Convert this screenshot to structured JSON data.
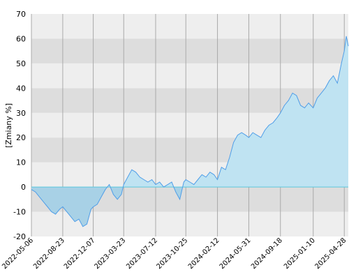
{
  "chart_data": {
    "type": "area",
    "title": "",
    "xlabel": "",
    "ylabel": "[Zmiany %]",
    "ylim": [
      -20,
      70
    ],
    "y_ticks": [
      -20,
      -10,
      0,
      10,
      20,
      30,
      40,
      50,
      60,
      70
    ],
    "x_tick_labels": [
      "2022-05-06",
      "2022-08-23",
      "2022-12-07",
      "2023-03-23",
      "2023-07-12",
      "2023-10-25",
      "2024-02-12",
      "2024-05-31",
      "2024-09-18",
      "2025-01-10",
      "2025-04-28"
    ],
    "x_range": [
      "2022-05-06",
      "2025-05-12"
    ],
    "grid": true,
    "band_colors": [
      "#eeeeee",
      "#dddddd"
    ],
    "colors": {
      "line": "#4f9ee8",
      "positive_fill": "#bfe3f2",
      "negative_fill": "#a8d1e6",
      "zero_line": "#5bc8dc"
    },
    "series": [
      {
        "x": [
          "2022-05-06",
          "2022-05-20",
          "2022-06-03",
          "2022-06-17",
          "2022-07-01",
          "2022-07-15",
          "2022-07-29",
          "2022-08-12",
          "2022-08-23",
          "2022-09-06",
          "2022-09-20",
          "2022-10-04",
          "2022-10-18",
          "2022-11-01",
          "2022-11-15",
          "2022-11-29",
          "2022-12-07",
          "2022-12-21",
          "2023-01-04",
          "2023-01-18",
          "2023-02-01",
          "2023-02-15",
          "2023-03-01",
          "2023-03-15",
          "2023-03-23",
          "2023-04-06",
          "2023-04-20",
          "2023-05-04",
          "2023-05-18",
          "2023-06-01",
          "2023-06-15",
          "2023-06-29",
          "2023-07-12",
          "2023-07-26",
          "2023-08-09",
          "2023-08-23",
          "2023-09-06",
          "2023-09-20",
          "2023-10-04",
          "2023-10-18",
          "2023-10-25",
          "2023-11-08",
          "2023-11-22",
          "2023-12-06",
          "2023-12-20",
          "2024-01-03",
          "2024-01-17",
          "2024-01-31",
          "2024-02-12",
          "2024-02-26",
          "2024-03-11",
          "2024-03-25",
          "2024-04-08",
          "2024-04-22",
          "2024-05-06",
          "2024-05-20",
          "2024-05-31",
          "2024-06-14",
          "2024-06-28",
          "2024-07-12",
          "2024-07-26",
          "2024-08-09",
          "2024-08-23",
          "2024-09-06",
          "2024-09-18",
          "2024-10-02",
          "2024-10-16",
          "2024-10-30",
          "2024-11-13",
          "2024-11-27",
          "2024-12-11",
          "2024-12-25",
          "2025-01-10",
          "2025-01-24",
          "2025-02-07",
          "2025-02-21",
          "2025-03-07",
          "2025-03-21",
          "2025-04-04",
          "2025-04-18",
          "2025-04-28",
          "2025-05-05",
          "2025-05-12"
        ],
        "values": [
          -1,
          -2,
          -4,
          -6,
          -8,
          -10,
          -11,
          -9,
          -8,
          -10,
          -12,
          -14,
          -13,
          -16,
          -15,
          -9,
          -8,
          -7,
          -4,
          -1,
          1,
          -3,
          -5,
          -3,
          1,
          4,
          7,
          6,
          4,
          3,
          2,
          3,
          1,
          2,
          0,
          1,
          2,
          -2,
          -5,
          2,
          3,
          2,
          1,
          3,
          5,
          4,
          6,
          5,
          3,
          8,
          7,
          12,
          18,
          21,
          22,
          21,
          20,
          22,
          21,
          20,
          23,
          25,
          26,
          28,
          30,
          33,
          35,
          38,
          37,
          33,
          32,
          34,
          32,
          36,
          38,
          40,
          43,
          45,
          42,
          50,
          55,
          61,
          57
        ]
      }
    ]
  }
}
